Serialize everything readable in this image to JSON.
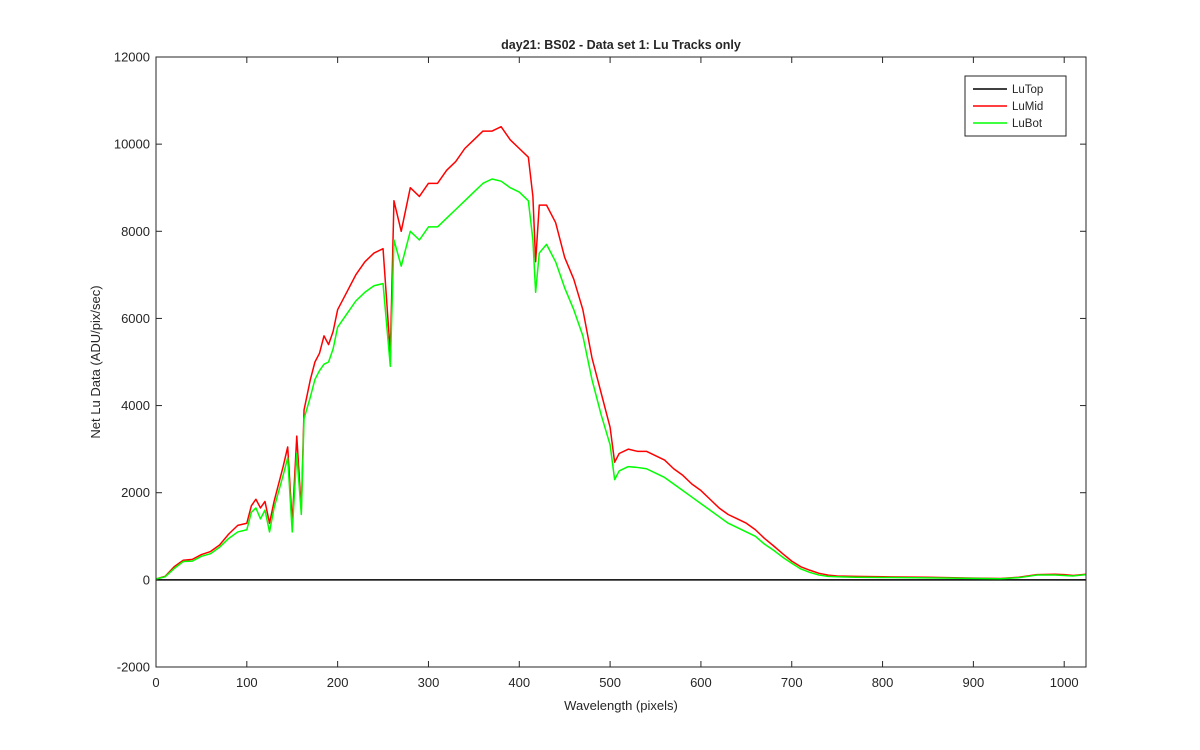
{
  "chart_data": {
    "type": "line",
    "title": "day21: BS02 - Data set 1: Lu Tracks only",
    "xlabel": "Wavelength (pixels)",
    "ylabel": "Net Lu Data (ADU/pix/sec)",
    "xlim": [
      0,
      1024
    ],
    "ylim": [
      -2000,
      12000
    ],
    "xticks": [
      0,
      100,
      200,
      300,
      400,
      500,
      600,
      700,
      800,
      900,
      1000
    ],
    "yticks": [
      -2000,
      0,
      2000,
      4000,
      6000,
      8000,
      10000,
      12000
    ],
    "grid": false,
    "legend_position": "top-right",
    "series": [
      {
        "name": "LuTop",
        "color": "#000000",
        "points": [
          [
            0,
            0
          ],
          [
            100,
            0
          ],
          [
            200,
            0
          ],
          [
            300,
            0
          ],
          [
            400,
            0
          ],
          [
            500,
            0
          ],
          [
            600,
            0
          ],
          [
            700,
            0
          ],
          [
            800,
            0
          ],
          [
            900,
            0
          ],
          [
            1024,
            0
          ]
        ]
      },
      {
        "name": "LuMid",
        "color": "#ff0000",
        "points": [
          [
            0,
            20
          ],
          [
            10,
            80
          ],
          [
            20,
            300
          ],
          [
            30,
            450
          ],
          [
            40,
            470
          ],
          [
            50,
            580
          ],
          [
            60,
            650
          ],
          [
            70,
            800
          ],
          [
            80,
            1050
          ],
          [
            90,
            1250
          ],
          [
            100,
            1300
          ],
          [
            105,
            1700
          ],
          [
            110,
            1850
          ],
          [
            115,
            1650
          ],
          [
            120,
            1800
          ],
          [
            125,
            1300
          ],
          [
            130,
            1800
          ],
          [
            140,
            2600
          ],
          [
            145,
            3050
          ],
          [
            150,
            1300
          ],
          [
            155,
            3300
          ],
          [
            160,
            1600
          ],
          [
            163,
            3900
          ],
          [
            170,
            4600
          ],
          [
            175,
            5000
          ],
          [
            180,
            5200
          ],
          [
            185,
            5600
          ],
          [
            190,
            5400
          ],
          [
            195,
            5700
          ],
          [
            200,
            6200
          ],
          [
            210,
            6600
          ],
          [
            220,
            7000
          ],
          [
            230,
            7300
          ],
          [
            240,
            7500
          ],
          [
            250,
            7600
          ],
          [
            258,
            5200
          ],
          [
            262,
            8700
          ],
          [
            270,
            8000
          ],
          [
            280,
            9000
          ],
          [
            290,
            8800
          ],
          [
            300,
            9100
          ],
          [
            310,
            9100
          ],
          [
            320,
            9400
          ],
          [
            330,
            9600
          ],
          [
            340,
            9900
          ],
          [
            350,
            10100
          ],
          [
            360,
            10300
          ],
          [
            370,
            10300
          ],
          [
            380,
            10400
          ],
          [
            390,
            10100
          ],
          [
            400,
            9900
          ],
          [
            410,
            9700
          ],
          [
            415,
            8800
          ],
          [
            418,
            7300
          ],
          [
            422,
            8600
          ],
          [
            430,
            8600
          ],
          [
            440,
            8200
          ],
          [
            450,
            7400
          ],
          [
            460,
            6900
          ],
          [
            470,
            6200
          ],
          [
            480,
            5100
          ],
          [
            490,
            4300
          ],
          [
            500,
            3500
          ],
          [
            505,
            2700
          ],
          [
            510,
            2900
          ],
          [
            520,
            3000
          ],
          [
            530,
            2950
          ],
          [
            540,
            2950
          ],
          [
            550,
            2850
          ],
          [
            560,
            2750
          ],
          [
            570,
            2550
          ],
          [
            580,
            2400
          ],
          [
            590,
            2200
          ],
          [
            600,
            2050
          ],
          [
            610,
            1850
          ],
          [
            620,
            1650
          ],
          [
            630,
            1500
          ],
          [
            640,
            1400
          ],
          [
            650,
            1300
          ],
          [
            660,
            1150
          ],
          [
            670,
            950
          ],
          [
            680,
            780
          ],
          [
            690,
            600
          ],
          [
            700,
            430
          ],
          [
            710,
            300
          ],
          [
            720,
            220
          ],
          [
            730,
            150
          ],
          [
            740,
            110
          ],
          [
            750,
            90
          ],
          [
            770,
            80
          ],
          [
            800,
            70
          ],
          [
            850,
            60
          ],
          [
            900,
            40
          ],
          [
            930,
            30
          ],
          [
            950,
            60
          ],
          [
            970,
            120
          ],
          [
            990,
            130
          ],
          [
            1000,
            120
          ],
          [
            1010,
            100
          ],
          [
            1024,
            130
          ]
        ]
      },
      {
        "name": "LuBot",
        "color": "#00ff00",
        "points": [
          [
            0,
            20
          ],
          [
            10,
            70
          ],
          [
            20,
            260
          ],
          [
            30,
            420
          ],
          [
            40,
            430
          ],
          [
            50,
            540
          ],
          [
            60,
            600
          ],
          [
            70,
            750
          ],
          [
            80,
            950
          ],
          [
            90,
            1100
          ],
          [
            100,
            1150
          ],
          [
            105,
            1550
          ],
          [
            110,
            1650
          ],
          [
            115,
            1400
          ],
          [
            120,
            1600
          ],
          [
            125,
            1100
          ],
          [
            130,
            1650
          ],
          [
            140,
            2400
          ],
          [
            145,
            2800
          ],
          [
            150,
            1100
          ],
          [
            155,
            2900
          ],
          [
            160,
            1500
          ],
          [
            163,
            3700
          ],
          [
            170,
            4200
          ],
          [
            175,
            4600
          ],
          [
            180,
            4800
          ],
          [
            185,
            4950
          ],
          [
            190,
            5000
          ],
          [
            195,
            5300
          ],
          [
            200,
            5800
          ],
          [
            210,
            6100
          ],
          [
            220,
            6400
          ],
          [
            230,
            6600
          ],
          [
            240,
            6750
          ],
          [
            250,
            6800
          ],
          [
            258,
            4900
          ],
          [
            262,
            7800
          ],
          [
            270,
            7200
          ],
          [
            280,
            8000
          ],
          [
            290,
            7800
          ],
          [
            300,
            8100
          ],
          [
            310,
            8100
          ],
          [
            320,
            8300
          ],
          [
            330,
            8500
          ],
          [
            340,
            8700
          ],
          [
            350,
            8900
          ],
          [
            360,
            9100
          ],
          [
            370,
            9200
          ],
          [
            380,
            9150
          ],
          [
            390,
            9000
          ],
          [
            400,
            8900
          ],
          [
            410,
            8700
          ],
          [
            415,
            7800
          ],
          [
            418,
            6600
          ],
          [
            422,
            7500
          ],
          [
            430,
            7700
          ],
          [
            440,
            7300
          ],
          [
            450,
            6700
          ],
          [
            460,
            6200
          ],
          [
            470,
            5600
          ],
          [
            480,
            4600
          ],
          [
            490,
            3800
          ],
          [
            500,
            3100
          ],
          [
            505,
            2300
          ],
          [
            510,
            2500
          ],
          [
            520,
            2600
          ],
          [
            530,
            2580
          ],
          [
            540,
            2550
          ],
          [
            550,
            2450
          ],
          [
            560,
            2350
          ],
          [
            570,
            2200
          ],
          [
            580,
            2050
          ],
          [
            590,
            1900
          ],
          [
            600,
            1750
          ],
          [
            610,
            1600
          ],
          [
            620,
            1450
          ],
          [
            630,
            1300
          ],
          [
            640,
            1200
          ],
          [
            650,
            1100
          ],
          [
            660,
            1000
          ],
          [
            670,
            820
          ],
          [
            680,
            680
          ],
          [
            690,
            520
          ],
          [
            700,
            380
          ],
          [
            710,
            250
          ],
          [
            720,
            170
          ],
          [
            730,
            110
          ],
          [
            740,
            80
          ],
          [
            750,
            70
          ],
          [
            770,
            60
          ],
          [
            800,
            55
          ],
          [
            850,
            45
          ],
          [
            900,
            35
          ],
          [
            930,
            25
          ],
          [
            950,
            50
          ],
          [
            970,
            110
          ],
          [
            990,
            110
          ],
          [
            1000,
            100
          ],
          [
            1010,
            90
          ],
          [
            1024,
            120
          ]
        ]
      }
    ]
  }
}
